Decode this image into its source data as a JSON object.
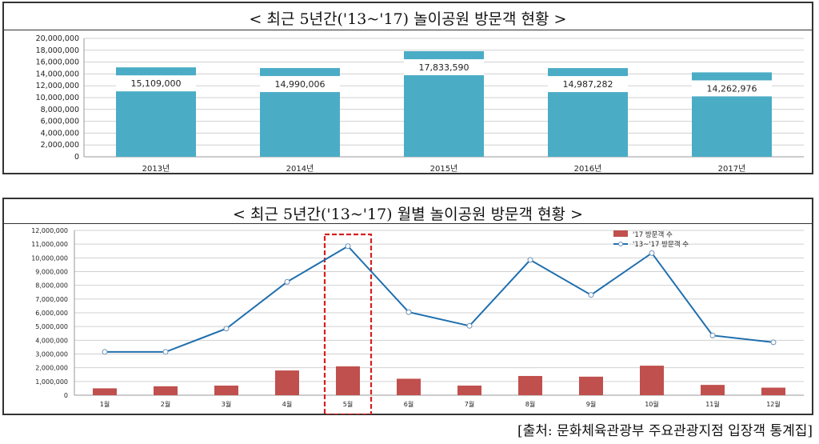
{
  "chart_data": [
    {
      "type": "bar",
      "title": "< 최근 5년간('13~'17) 놀이공원 방문객 현황 >",
      "categories": [
        "2013년",
        "2014년",
        "2015년",
        "2016년",
        "2017년"
      ],
      "values": [
        15109000,
        14990006,
        17833590,
        14987282,
        14262976
      ],
      "value_labels": [
        "15,109,000",
        "14,990,006",
        "17,833,590",
        "14,987,282",
        "14,262,976"
      ],
      "ylim": [
        0,
        20000000
      ],
      "yticks": [
        "0",
        "2,000,000",
        "4,000,000",
        "6,000,000",
        "8,000,000",
        "10,000,000",
        "12,000,000",
        "14,000,000",
        "16,000,000",
        "18,000,000",
        "20,000,000"
      ],
      "grid": true,
      "color": "#4bacc6"
    },
    {
      "type": "bar+line",
      "title": "< 최근 5년간('13~'17) 월별 놀이공원 방문객 현황 >",
      "categories": [
        "1월",
        "2월",
        "3월",
        "4월",
        "5월",
        "6월",
        "7월",
        "8월",
        "9월",
        "10월",
        "11월",
        "12월"
      ],
      "series": [
        {
          "name": "'17 방문객 수",
          "type": "bar",
          "color": "#c0504d",
          "values": [
            500000,
            650000,
            700000,
            1800000,
            2100000,
            1200000,
            700000,
            1400000,
            1350000,
            2150000,
            750000,
            550000
          ]
        },
        {
          "name": "'13~'17 방문객 수",
          "type": "line",
          "color": "#1f6fae",
          "values": [
            3150000,
            3150000,
            4850000,
            8250000,
            10850000,
            6050000,
            5050000,
            9850000,
            7300000,
            10350000,
            4350000,
            3850000
          ]
        }
      ],
      "ylim": [
        0,
        12000000
      ],
      "yticks": [
        "0",
        "1,000,000",
        "2,000,000",
        "3,000,000",
        "4,000,000",
        "5,000,000",
        "6,000,000",
        "7,000,000",
        "8,000,000",
        "9,000,000",
        "10,000,000",
        "11,000,000",
        "12,000,000"
      ],
      "grid": true,
      "highlight_category": "5월",
      "highlight_color": "#d62020",
      "legend_position": "top-right"
    }
  ],
  "source": "[출처: 문화체육관광부 주요관광지점 입장객 통계집]"
}
